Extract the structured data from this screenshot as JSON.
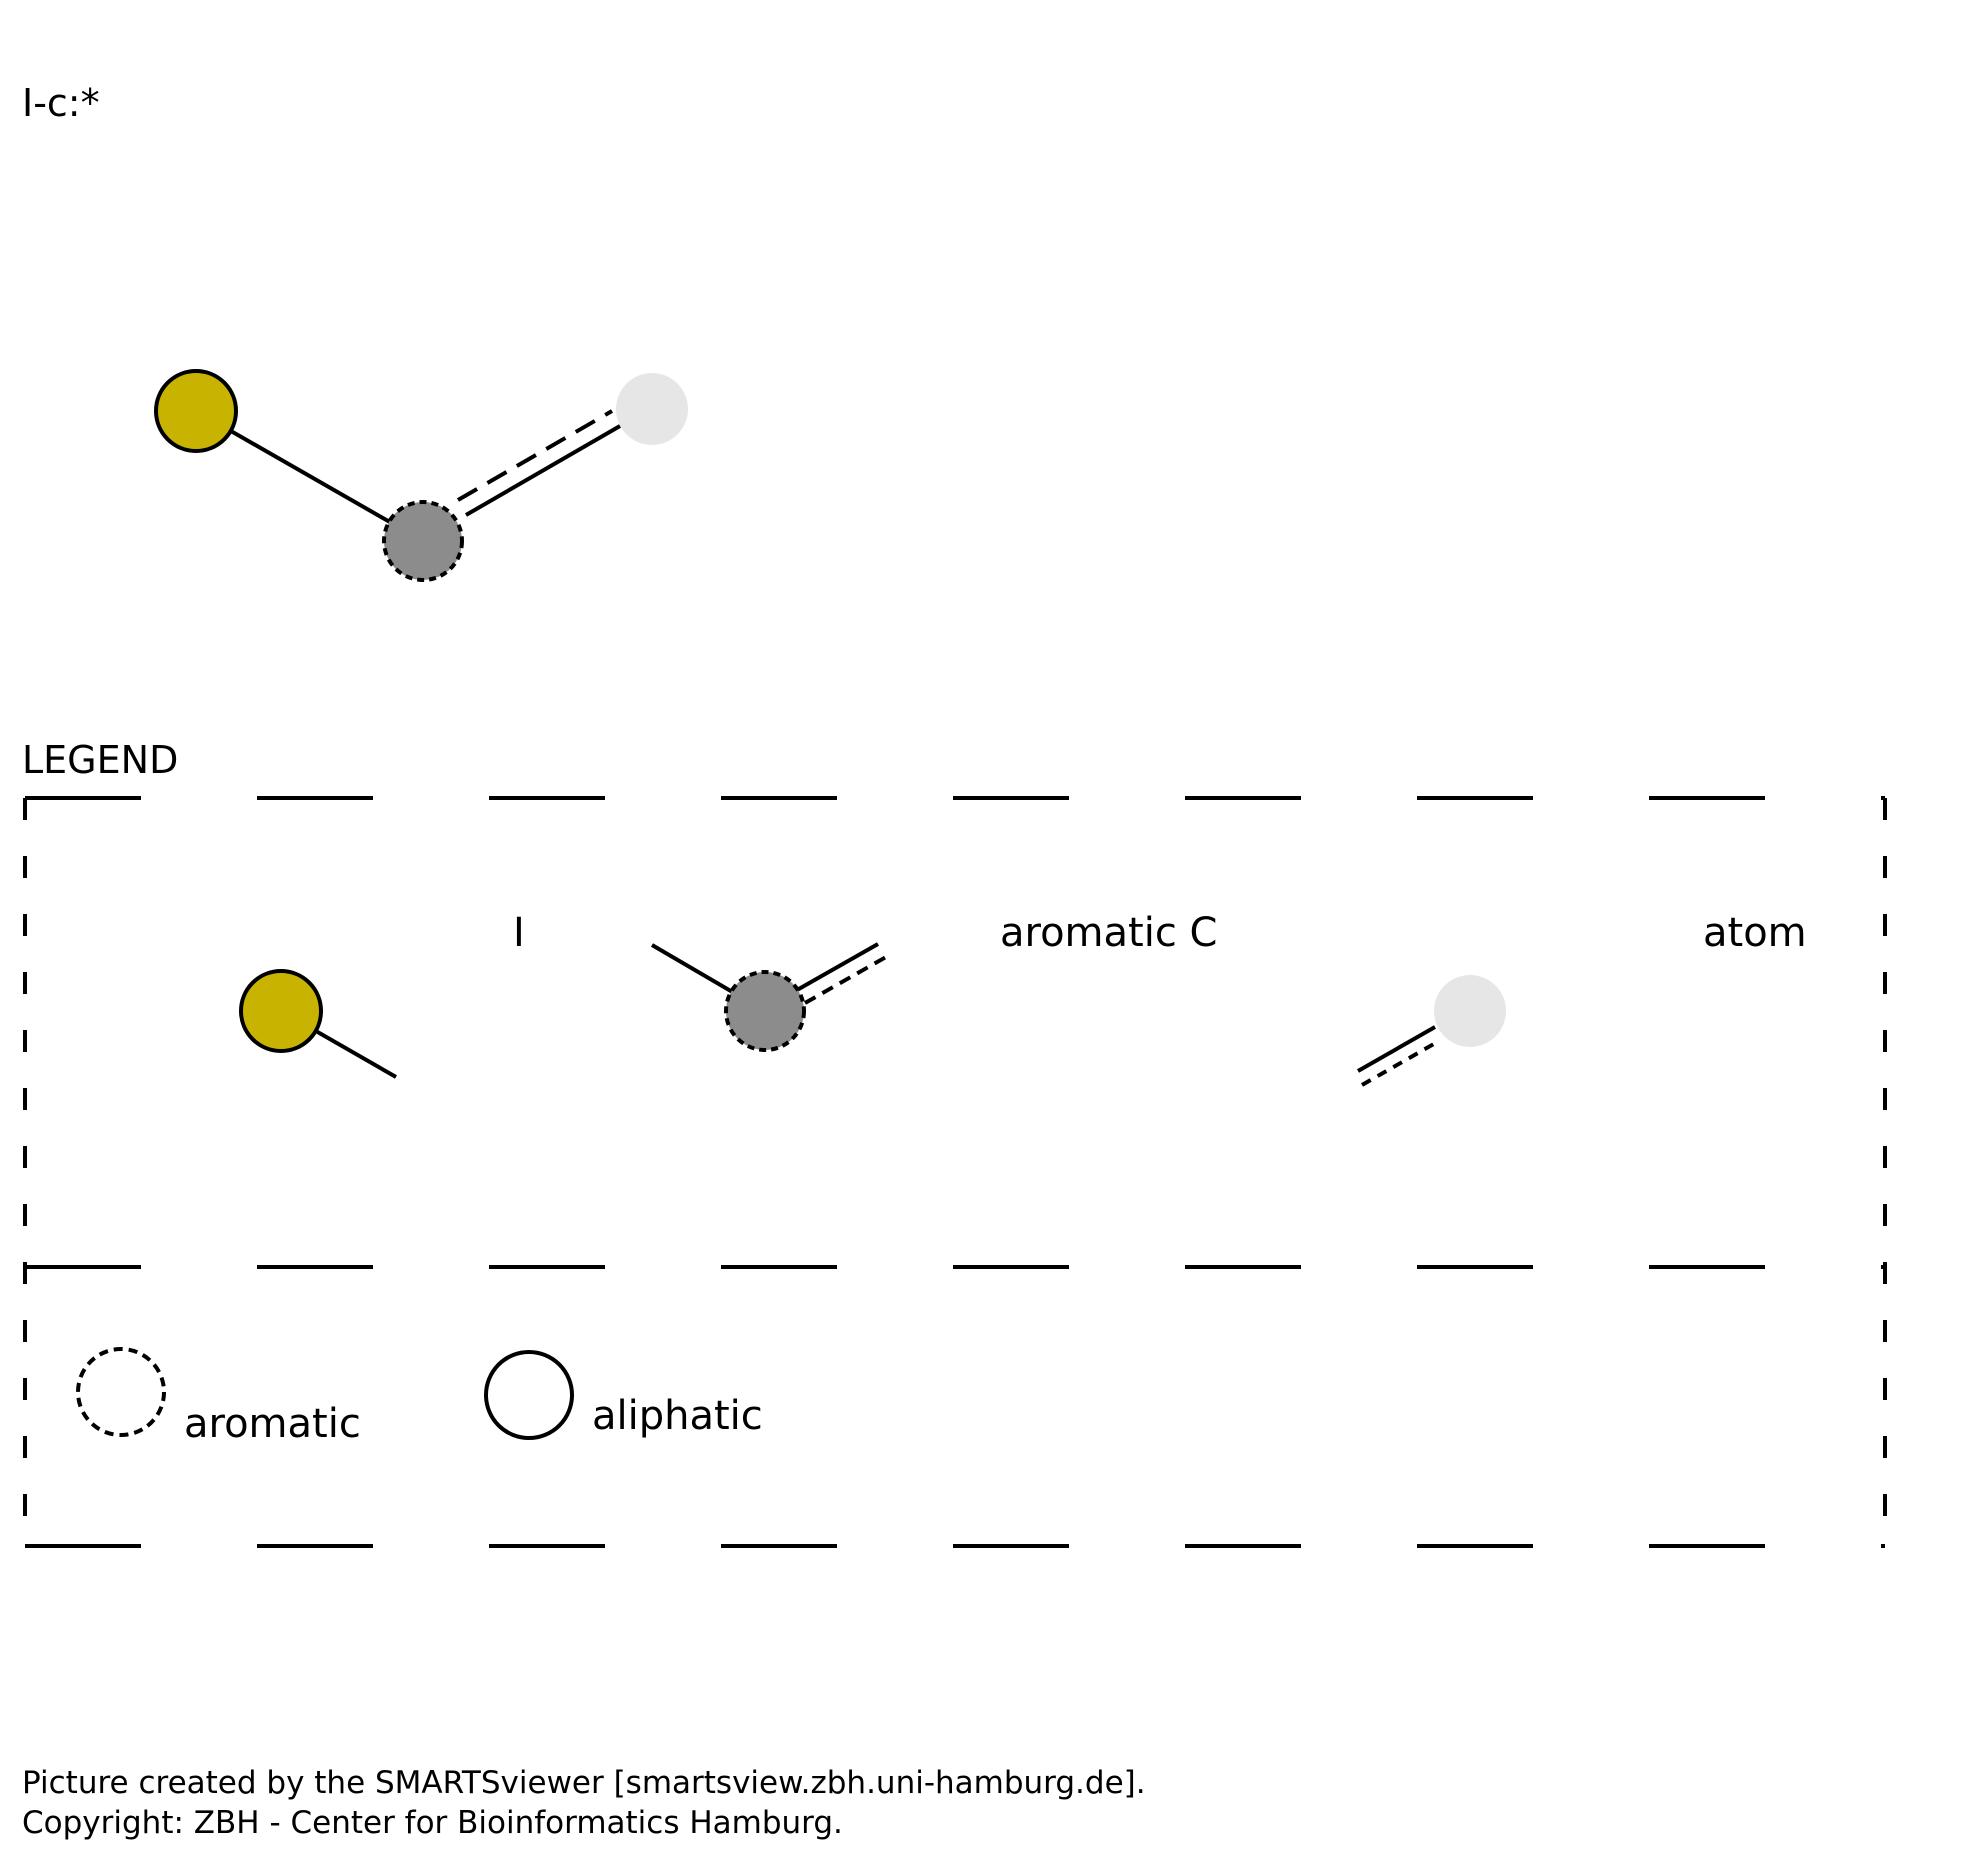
{
  "smarts": "I-c:*",
  "legend": {
    "title": "LEGEND",
    "atoms": [
      {
        "label": "I",
        "color": "#c8b400",
        "style": "aliphatic"
      },
      {
        "label": "aromatic C",
        "color": "#8c8c8c",
        "style": "aromatic"
      },
      {
        "label": "atom",
        "color": "#e6e6e6",
        "style": "any"
      }
    ],
    "aromatic_label": "aromatic",
    "aliphatic_label": "aliphatic"
  },
  "molecule": {
    "atoms": [
      {
        "element": "I",
        "color": "#c8b400",
        "style": "aliphatic"
      },
      {
        "element": "c",
        "color": "#8c8c8c",
        "style": "aromatic"
      },
      {
        "element": "*",
        "color": "#e6e6e6",
        "style": "any"
      }
    ],
    "bonds": [
      {
        "from": 0,
        "to": 1,
        "type": "single"
      },
      {
        "from": 1,
        "to": 2,
        "type": "aromatic"
      }
    ]
  },
  "footer": {
    "line1": "Picture created by the SMARTSviewer [smartsview.zbh.uni-hamburg.de].",
    "line2": "Copyright: ZBH - Center for Bioinformatics Hamburg."
  }
}
